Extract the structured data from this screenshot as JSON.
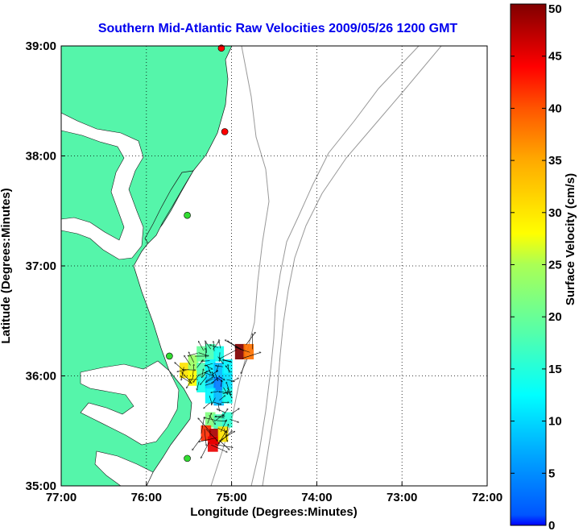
{
  "chart_data": {
    "type": "map",
    "title": "Southern Mid-Atlantic Raw Velocities 2009/05/26 1200 GMT",
    "xlabel": "Longitude (Degrees:Minutes)",
    "ylabel": "Latitude (Degrees:Minutes)",
    "xlim": [
      -77.0,
      -72.0
    ],
    "ylim": [
      35.0,
      39.0
    ],
    "x_ticks": [
      {
        "value": -77,
        "label": "77:00"
      },
      {
        "value": -76,
        "label": "76:00"
      },
      {
        "value": -75,
        "label": "75:00"
      },
      {
        "value": -74,
        "label": "74:00"
      },
      {
        "value": -73,
        "label": "73:00"
      },
      {
        "value": -72,
        "label": "72:00"
      }
    ],
    "y_ticks": [
      {
        "value": 35,
        "label": "35:00"
      },
      {
        "value": 36,
        "label": "36:00"
      },
      {
        "value": 37,
        "label": "37:00"
      },
      {
        "value": 38,
        "label": "38:00"
      },
      {
        "value": 39,
        "label": "39:00"
      }
    ],
    "grid": true,
    "colorbar": {
      "label": "Surface Velocity (cm/s)",
      "range": [
        0,
        50
      ],
      "ticks": [
        {
          "value": 0,
          "label": "0"
        },
        {
          "value": 5,
          "label": "5"
        },
        {
          "value": 10,
          "label": "10"
        },
        {
          "value": 15,
          "label": "15"
        },
        {
          "value": 20,
          "label": "20"
        },
        {
          "value": 25,
          "label": "25"
        },
        {
          "value": 30,
          "label": "30"
        },
        {
          "value": 35,
          "label": "35"
        },
        {
          "value": 40,
          "label": "40"
        },
        {
          "value": 45,
          "label": "45"
        },
        {
          "value": 50,
          "label": "50"
        }
      ]
    },
    "stations": [
      {
        "lon": -75.12,
        "lat": 38.98,
        "color": "#ff0000"
      },
      {
        "lon": -75.08,
        "lat": 38.22,
        "color": "#ff0000"
      },
      {
        "lon": -75.52,
        "lat": 37.46,
        "color": "#33dd33"
      },
      {
        "lon": -75.73,
        "lat": 36.18,
        "color": "#33dd33"
      },
      {
        "lon": -75.52,
        "lat": 35.25,
        "color": "#33dd33"
      }
    ],
    "velocity_cells": [
      {
        "lon": -75.55,
        "lat": 36.05,
        "speed": 30
      },
      {
        "lon": -75.45,
        "lat": 36.12,
        "speed": 24
      },
      {
        "lon": -75.35,
        "lat": 36.2,
        "speed": 20
      },
      {
        "lon": -75.25,
        "lat": 36.22,
        "speed": 18
      },
      {
        "lon": -75.15,
        "lat": 36.2,
        "speed": 14
      },
      {
        "lon": -75.45,
        "lat": 35.98,
        "speed": 28
      },
      {
        "lon": -75.35,
        "lat": 36.05,
        "speed": 18
      },
      {
        "lon": -75.25,
        "lat": 36.08,
        "speed": 12
      },
      {
        "lon": -75.15,
        "lat": 36.05,
        "speed": 9
      },
      {
        "lon": -75.05,
        "lat": 36.08,
        "speed": 12
      },
      {
        "lon": -75.35,
        "lat": 35.92,
        "speed": 14
      },
      {
        "lon": -75.25,
        "lat": 35.95,
        "speed": 10
      },
      {
        "lon": -75.15,
        "lat": 35.92,
        "speed": 6
      },
      {
        "lon": -75.05,
        "lat": 35.95,
        "speed": 11
      },
      {
        "lon": -75.25,
        "lat": 35.82,
        "speed": 12
      },
      {
        "lon": -75.15,
        "lat": 35.8,
        "speed": 9
      },
      {
        "lon": -75.05,
        "lat": 35.82,
        "speed": 14
      },
      {
        "lon": -75.25,
        "lat": 35.6,
        "speed": 22
      },
      {
        "lon": -75.15,
        "lat": 35.58,
        "speed": 18
      },
      {
        "lon": -75.05,
        "lat": 35.6,
        "speed": 16
      },
      {
        "lon": -75.3,
        "lat": 35.48,
        "speed": 42
      },
      {
        "lon": -75.2,
        "lat": 35.45,
        "speed": 48
      },
      {
        "lon": -75.1,
        "lat": 35.47,
        "speed": 30
      },
      {
        "lon": -75.22,
        "lat": 35.38,
        "speed": 45
      },
      {
        "lon": -74.9,
        "lat": 36.22,
        "speed": 50
      },
      {
        "lon": -74.8,
        "lat": 36.22,
        "speed": 38
      }
    ]
  }
}
